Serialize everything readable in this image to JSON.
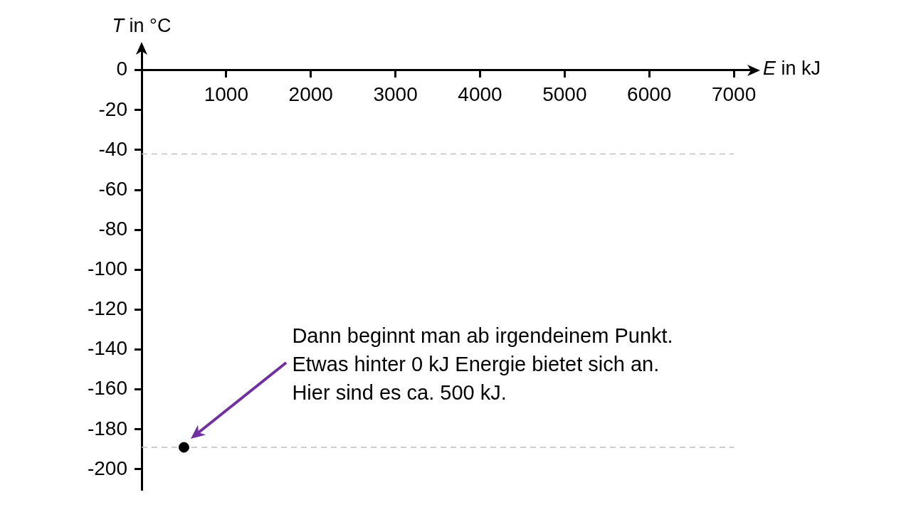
{
  "chart_data": {
    "type": "scatter",
    "xlabel": "E in kJ",
    "ylabel": "T in °C",
    "x": [
      500
    ],
    "values": [
      -189
    ],
    "color": "#000000",
    "marker": "circle",
    "xlim": [
      0,
      7260
    ],
    "xticks": [
      1000,
      2000,
      3000,
      4000,
      5000,
      6000,
      7000
    ],
    "ylim": [
      -210,
      12
    ],
    "yticks": [
      0,
      -20,
      -40,
      -60,
      -80,
      -100,
      -120,
      -140,
      -160,
      -180,
      -200
    ],
    "ref_lines": [
      {
        "axis": "y",
        "value": -42,
        "color": "#bfbfbf",
        "line_style": "dashed"
      },
      {
        "axis": "y",
        "value": -189,
        "color": "#bfbfbf",
        "line_style": "dashed"
      }
    ],
    "annotations": [
      "Dann beginnt man ab irgendeinem Punkt.\nEtwas hinter 0 kJ Energie bietet sich an.\nHier sind es ca. 500 kJ."
    ]
  }
}
